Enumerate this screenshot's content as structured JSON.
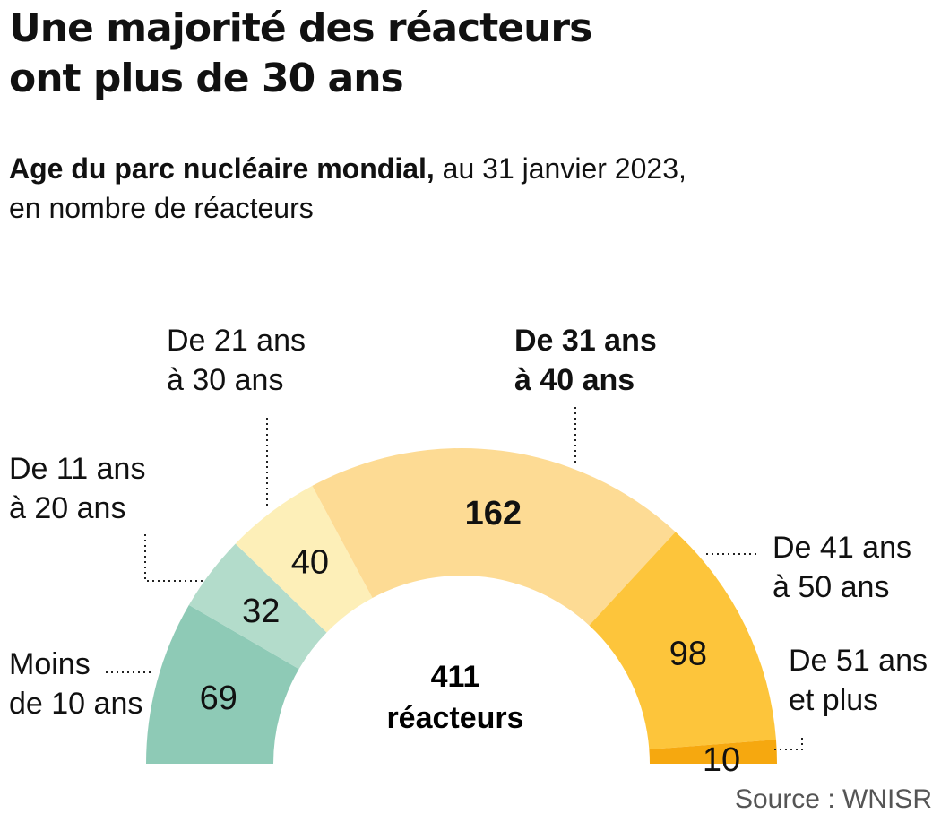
{
  "title_line1": "Une majorité des réacteurs",
  "title_line2": "ont plus de 30 ans",
  "subtitle_bold": "Age du parc nucléaire mondial,",
  "subtitle_rest": " au 31 janvier 2023,",
  "subtitle_line2": "en nombre de réacteurs",
  "source": "Source : WNISR",
  "colors": [
    "#8ecab6",
    "#b3dccb",
    "#fdefb8",
    "#fddb94",
    "#fdc53b",
    "#f6a80f"
  ],
  "chart_data": {
    "type": "pie",
    "shape": "half-donut",
    "categories": [
      "Moins de 10 ans",
      "De 11 ans à 20 ans",
      "De 21 ans à 30 ans",
      "De 31 ans à 40 ans",
      "De 41 ans à 50 ans",
      "De 51 ans et plus"
    ],
    "values": [
      69,
      32,
      40,
      162,
      98,
      10
    ],
    "total": 411,
    "center_label": [
      "411",
      "réacteurs"
    ],
    "legend_labels": [
      [
        "Moins",
        "de 10 ans"
      ],
      [
        "De 11 ans",
        "à 20 ans"
      ],
      [
        "De 21 ans",
        "à 30 ans"
      ],
      [
        "De 31 ans",
        "à 40 ans"
      ],
      [
        "De 41 ans",
        "à 50 ans"
      ],
      [
        "De 51 ans",
        "et plus"
      ]
    ],
    "highlight_index": 3
  }
}
